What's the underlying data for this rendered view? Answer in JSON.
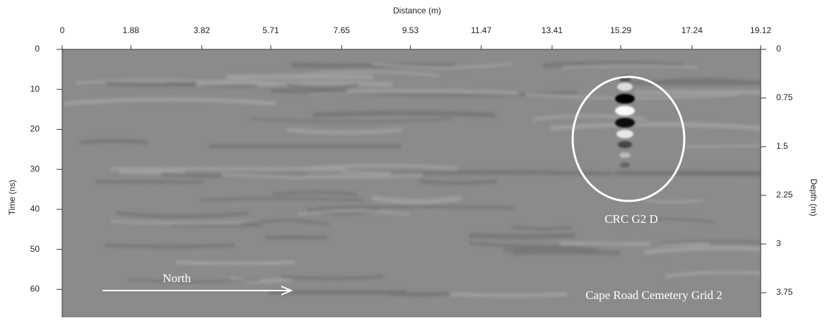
{
  "chart_data": {
    "type": "radargram",
    "x_label": "Distance (m)",
    "y_label": "Time (ns)",
    "y2_label": "Depth (m)",
    "xlim": [
      0,
      19.12
    ],
    "xticks": [
      0,
      1.88,
      3.82,
      5.71,
      7.65,
      9.53,
      11.47,
      13.41,
      15.29,
      17.24,
      19.12
    ],
    "ylim": [
      0,
      67
    ],
    "yticks": [
      0,
      10,
      20,
      30,
      40,
      50,
      60
    ],
    "y2lim": [
      0,
      4.13
    ],
    "y2ticks": [
      0,
      0.75,
      1.5,
      2.25,
      3,
      3.75
    ],
    "annotations": [
      "CRC G2 D",
      "North",
      "Cape Road Cemetery Grid 2"
    ]
  }
}
